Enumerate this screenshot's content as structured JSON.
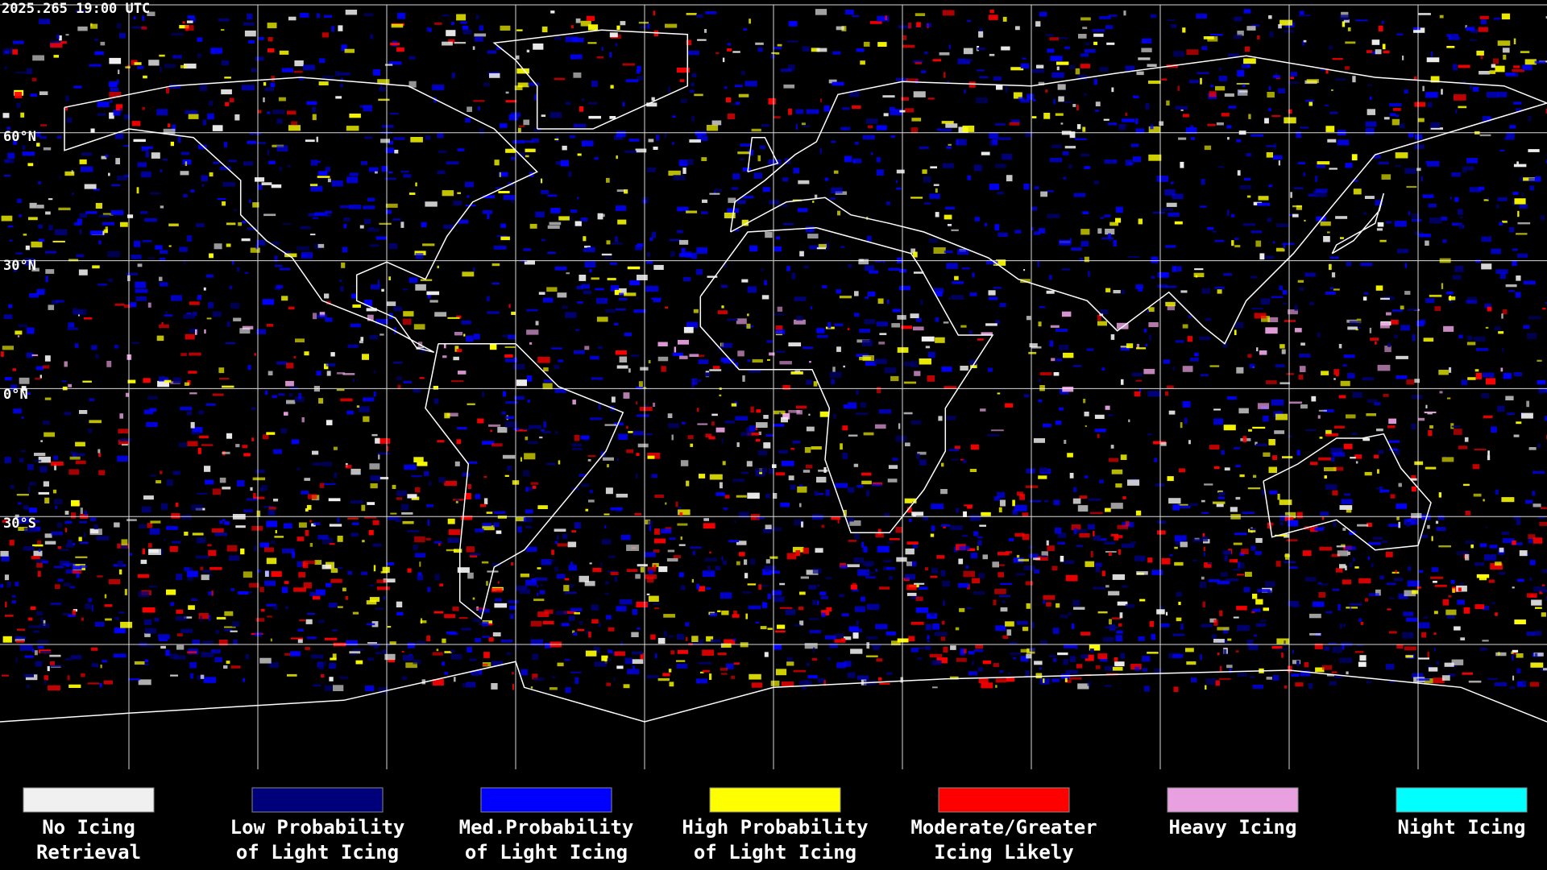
{
  "header": {
    "timestamp": "2025.265 19:00 UTC"
  },
  "map": {
    "latitude_labels": [
      "60°N",
      "30°N",
      "0°N",
      "30°S"
    ]
  },
  "legend": {
    "items": [
      {
        "lines": [
          "No Icing",
          "Retrieval"
        ],
        "color": "#f0f0f0"
      },
      {
        "lines": [
          "Low Probability",
          "of Light Icing"
        ],
        "color": "#00007a"
      },
      {
        "lines": [
          "Med.Probability",
          "of Light Icing"
        ],
        "color": "#0000ff"
      },
      {
        "lines": [
          "High Probability",
          "of Light Icing"
        ],
        "color": "#ffff00"
      },
      {
        "lines": [
          "Moderate/Greater",
          "Icing Likely"
        ],
        "color": "#ff0000"
      },
      {
        "lines": [
          "Heavy Icing"
        ],
        "color": "#e8a0e0"
      },
      {
        "lines": [
          "Night Icing"
        ],
        "color": "#00ffff"
      }
    ]
  }
}
